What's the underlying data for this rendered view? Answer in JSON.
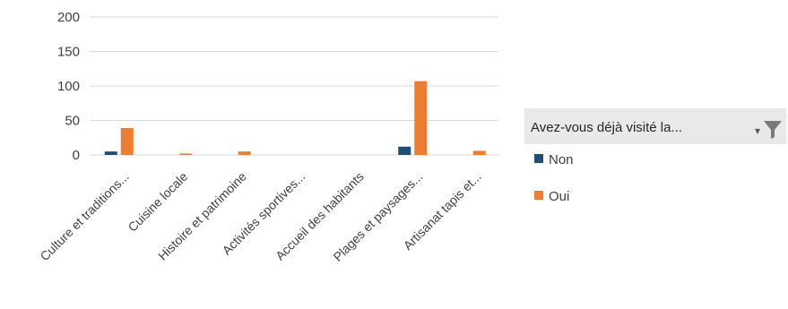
{
  "chart_data": {
    "type": "bar",
    "categories": [
      "Culture et traditions...",
      "Cuisine locale",
      "Histoire et patrimoine",
      "Activités sportives...",
      "Accueil des habitants",
      "Plages et paysages...",
      "Artisanat tapis et..."
    ],
    "series": [
      {
        "name": "Non",
        "color": "#1f4e79",
        "values": [
          5,
          0,
          0,
          0,
          0,
          12,
          0
        ]
      },
      {
        "name": "Oui",
        "color": "#ed7d31",
        "values": [
          39,
          2,
          5,
          0,
          0,
          107,
          6
        ]
      }
    ],
    "ylim": [
      0,
      200
    ],
    "yticks": [
      0,
      50,
      100,
      150,
      200
    ],
    "grid": true,
    "legend": {
      "title": "Avez-vous déjà visité la...",
      "placement": "right",
      "filter_icon": "filter-icon"
    }
  }
}
